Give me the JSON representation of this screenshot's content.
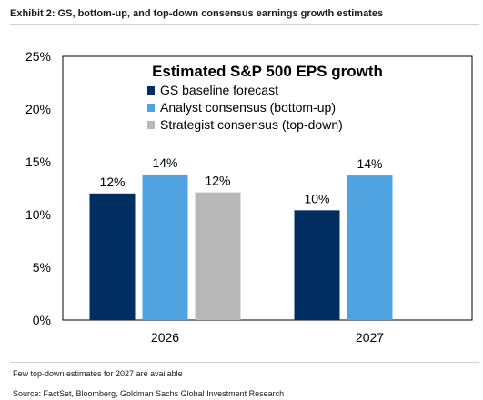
{
  "exhibit": {
    "title": "Exhibit 2: GS, bottom-up, and top-down consensus earnings growth estimates"
  },
  "footnotes": {
    "note": "Few top-down estimates for 2027 are available",
    "source": "Source: FactSet, Bloomberg, Goldman Sachs Global Investment Research"
  },
  "chart_data": {
    "type": "bar",
    "title": "Estimated S&P 500 EPS growth",
    "xlabel": "",
    "ylabel": "",
    "categories": [
      "2026",
      "2027"
    ],
    "ylim": [
      0,
      25
    ],
    "yticks": [
      "0%",
      "5%",
      "10%",
      "15%",
      "20%",
      "25%"
    ],
    "grid": false,
    "legend_position": "top-center",
    "series": [
      {
        "name": "GS baseline forecast",
        "color": "#002d62",
        "values": [
          12,
          10.4
        ],
        "labels": [
          "12%",
          "10%"
        ]
      },
      {
        "name": "Analyst consensus (bottom-up)",
        "color": "#4fa3e0",
        "values": [
          13.8,
          13.7
        ],
        "labels": [
          "14%",
          "14%"
        ]
      },
      {
        "name": "Strategist consensus (top-down)",
        "color": "#b8b8b8",
        "values": [
          12.1,
          null
        ],
        "labels": [
          "12%",
          null
        ]
      }
    ]
  }
}
